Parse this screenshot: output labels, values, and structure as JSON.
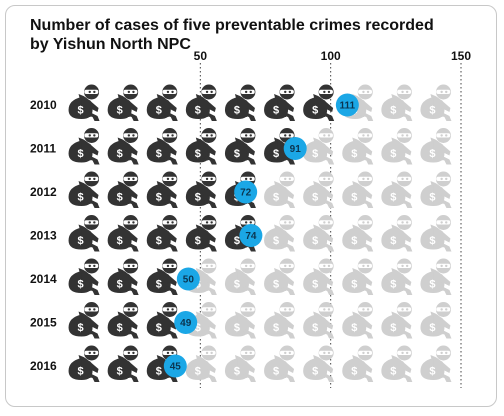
{
  "title": "Number of cases of five preventable crimes recorded by Yishun North NPC",
  "colors": {
    "figure_dark": "#333333",
    "figure_faded": "#cfcfcf",
    "value_bubble": "#1ba7e6",
    "value_text": "#0b3550",
    "text": "#111111",
    "gridline": "#444444"
  },
  "chart_data": {
    "type": "bar",
    "title": "Number of cases of five preventable crimes recorded by Yishun North NPC",
    "orientation": "horizontal",
    "encoding": "pictograph (burglar icons, 15 cases per icon)",
    "categories": [
      "2010",
      "2011",
      "2012",
      "2013",
      "2014",
      "2015",
      "2016"
    ],
    "values": [
      111,
      91,
      72,
      74,
      50,
      49,
      45
    ],
    "xlim": [
      0,
      150
    ],
    "x_ticks": [
      "50",
      "100",
      "150"
    ],
    "x_tick_values": [
      50,
      100,
      150
    ],
    "xlabel": "",
    "ylabel": "",
    "grid": "dotted vertical lines at ticks",
    "legend": "none",
    "data_labels": [
      "111",
      "91",
      "72",
      "74",
      "50",
      "49",
      "45"
    ]
  }
}
